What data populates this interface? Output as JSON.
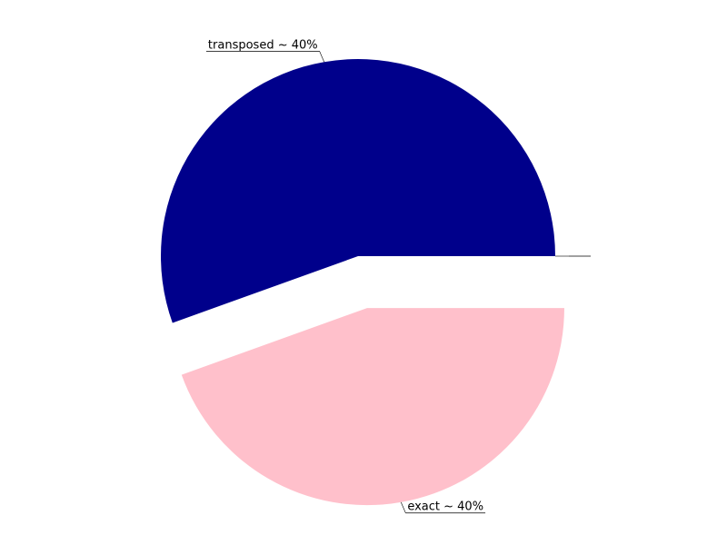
{
  "chart_data": {
    "type": "pie",
    "slices": [
      {
        "label": "transposed ~ 40%",
        "value": 55.5,
        "color": "#00008b",
        "exploded": false
      },
      {
        "label": "exact ~ 40%",
        "value": 44.5,
        "color": "#ffc0cb",
        "exploded": true
      },
      {
        "label": "",
        "value": 0,
        "color": "#ffffff",
        "exploded": false
      }
    ],
    "legend": false
  }
}
